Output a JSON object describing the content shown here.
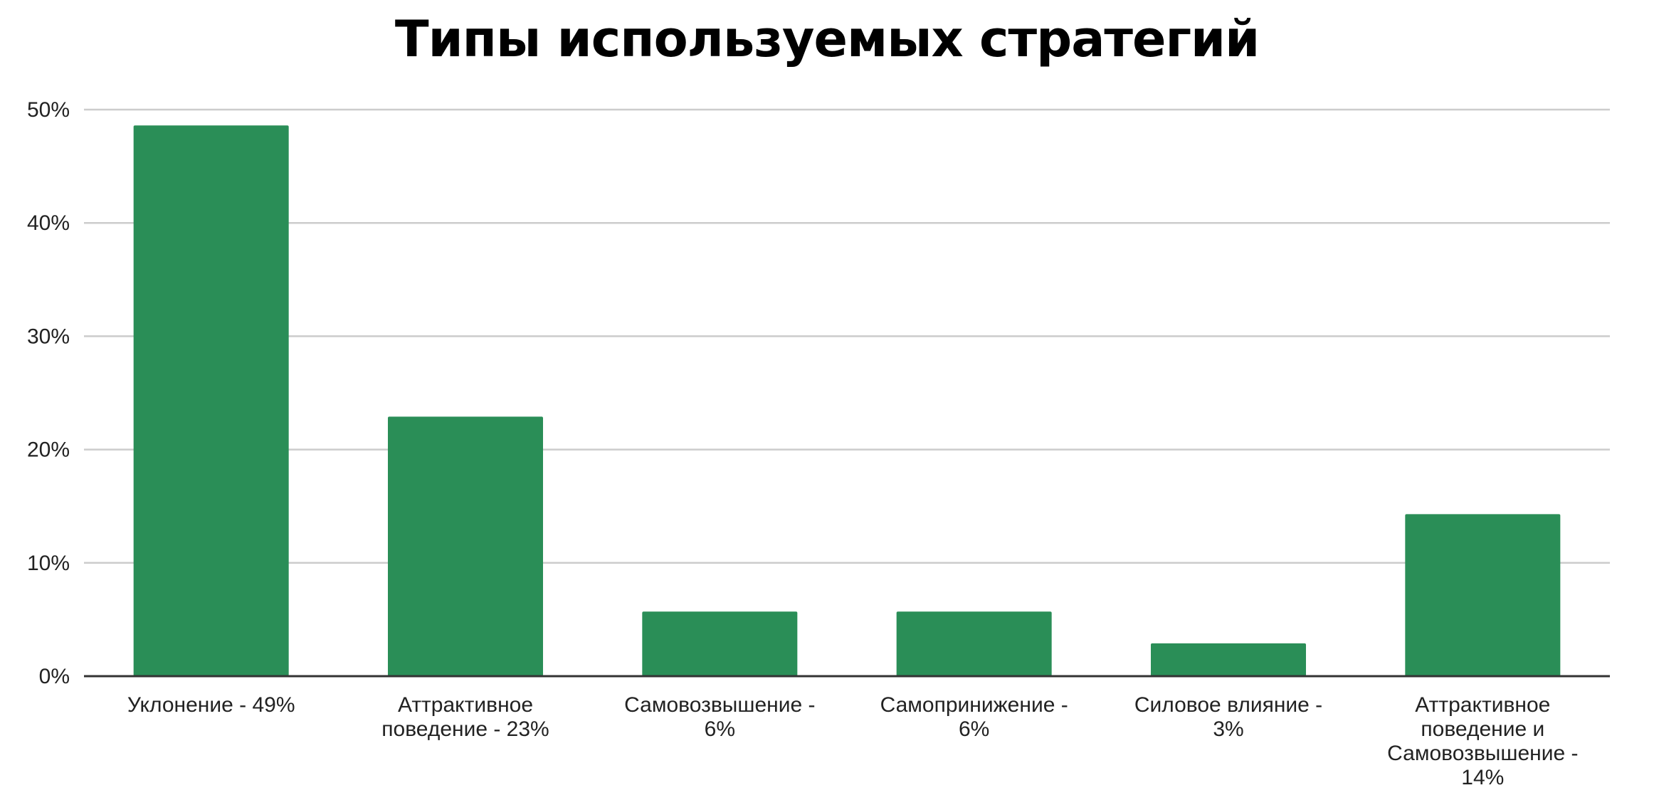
{
  "chart_data": {
    "type": "bar",
    "title": "Типы используемых стратегий",
    "xlabel": "",
    "ylabel": "",
    "ylim": [
      0,
      50
    ],
    "yticks": [
      "0%",
      "10%",
      "20%",
      "30%",
      "40%",
      "50%"
    ],
    "ytick_values": [
      0,
      10,
      20,
      30,
      40,
      50
    ],
    "categories": [
      [
        "Уклонение - 49%"
      ],
      [
        "Аттрактивное",
        "поведение - 23%"
      ],
      [
        "Самовозвышение -",
        "6%"
      ],
      [
        "Самопринижение -",
        "6%"
      ],
      [
        "Силовое влияние -",
        "3%"
      ],
      [
        "Аттрактивное",
        "поведение и",
        "Самовозвышение -",
        "14%"
      ]
    ],
    "values": [
      48.6,
      22.9,
      5.7,
      5.7,
      2.9,
      14.3
    ],
    "grid": true,
    "legend": "none"
  },
  "colors": {
    "bar": "#2a8e57",
    "grid": "#cccccc",
    "axis": "#333333",
    "text": "#222222"
  }
}
